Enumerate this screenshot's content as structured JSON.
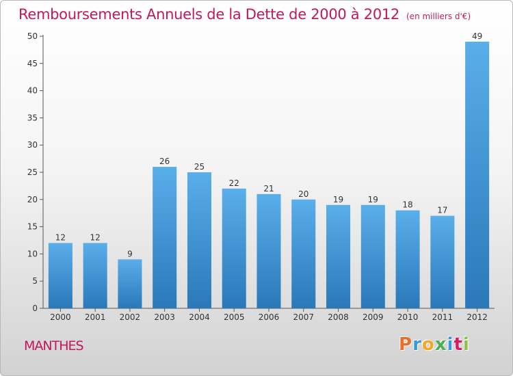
{
  "header": {
    "title": "Remboursements Annuels de la Dette de 2000 à 2012",
    "subtitle": "(en milliers d'€)"
  },
  "footer": {
    "commune": "MANTHES",
    "logo_text": "Proxiti",
    "logo_colors": [
      "#e8702a",
      "#3a9ad9",
      "#f5a623",
      "#4caf50",
      "#3a9ad9",
      "#d81b60",
      "#8bc34a"
    ]
  },
  "chart_data": {
    "type": "bar",
    "title": "Remboursements Annuels de la Dette de 2000 à 2012",
    "subtitle": "(en milliers d'€)",
    "categories": [
      "2000",
      "2001",
      "2002",
      "2003",
      "2004",
      "2005",
      "2006",
      "2007",
      "2008",
      "2009",
      "2010",
      "2011",
      "2012"
    ],
    "values": [
      12,
      12,
      9,
      26,
      25,
      22,
      21,
      20,
      19,
      19,
      18,
      17,
      49
    ],
    "ylim": [
      0,
      50
    ],
    "yticks": [
      0,
      5,
      10,
      15,
      20,
      25,
      30,
      35,
      40,
      45,
      50
    ],
    "grid": false,
    "bar_color": "#3a8fd0",
    "bar_color_light": "#5aaeea",
    "bar_color_dark": "#2a78b8",
    "axis_color": "#555555",
    "label_color": "#333333"
  }
}
